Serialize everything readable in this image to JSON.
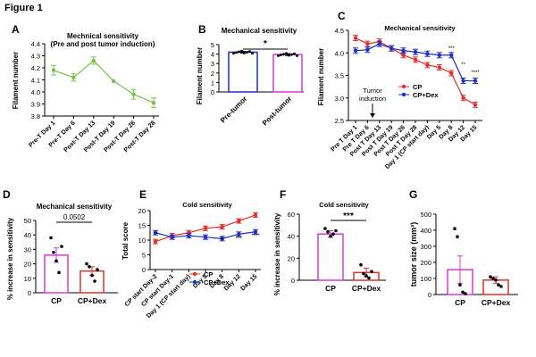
{
  "figure_title": "Figure 1",
  "colors": {
    "green": "#7ac143",
    "blue": "#1f2fc4",
    "magenta": "#d63ad6",
    "red": "#e0302a",
    "axis": "#000000"
  },
  "chart_data": [
    {
      "panel": "A",
      "type": "line",
      "title": "Mechnical sensitivity",
      "subtitle": "(Pre and post tumor induction)",
      "ylabel": "Filament number",
      "xlabel": "",
      "ylim": [
        3.8,
        4.4
      ],
      "yticks": [
        "3.8",
        "3.9",
        "4.0",
        "4.1",
        "4.2",
        "4.3",
        "4.4"
      ],
      "categories": [
        "Pre-T Day 1",
        "Pre-T Day 6",
        "Post-T Day 13",
        "Post-T Day 19",
        "Post-T Day 26",
        "Post-T Day 28"
      ],
      "series": [
        {
          "name": "",
          "values": [
            4.18,
            4.12,
            4.26,
            4.09,
            3.98,
            3.91
          ],
          "errors": [
            0.04,
            0.03,
            0.03,
            0.0,
            0.04,
            0.04
          ]
        }
      ]
    },
    {
      "panel": "B",
      "type": "bar",
      "title": "Mechanical sensitivity",
      "ylabel": "Filament number",
      "ylim": [
        0,
        5
      ],
      "yticks": [
        "0",
        "1",
        "2",
        "3",
        "4",
        "5"
      ],
      "categories": [
        "Pre-tumor",
        "Post-tumor"
      ],
      "values": [
        4.2,
        3.95
      ],
      "errors": [
        0.1,
        0.1
      ],
      "significance": "*"
    },
    {
      "panel": "C",
      "type": "line",
      "title": "Mechanical sensitivity",
      "ylabel": "Filament number",
      "ylim": [
        2.5,
        4.5
      ],
      "yticks": [
        "2.5",
        "3.0",
        "3.5",
        "4.0",
        "4.5"
      ],
      "categories": [
        "Pre T Day 1",
        "Pre T Day 6",
        "Post T Day 13",
        "Post T Day 19",
        "Post T Day 26",
        "Post T Day 28",
        "Day 1 (CP start day)",
        "Day 5",
        "Day 8",
        "Day 12",
        "Day 15"
      ],
      "series": [
        {
          "name": "CP",
          "values": [
            4.33,
            4.2,
            4.25,
            4.1,
            3.95,
            3.85,
            3.73,
            3.68,
            3.55,
            3.0,
            2.85
          ]
        },
        {
          "name": "CP+Dex",
          "values": [
            4.05,
            4.07,
            4.2,
            4.1,
            4.05,
            4.02,
            3.98,
            3.95,
            3.95,
            3.38,
            3.38
          ]
        }
      ],
      "significance": [
        {
          "category": "Day 8",
          "label": "***"
        },
        {
          "category": "Day 12",
          "label": "**"
        },
        {
          "category": "Day 15",
          "label": "****"
        }
      ],
      "annotation": "Tumor induction",
      "legend": [
        "CP",
        "CP+Dex"
      ]
    },
    {
      "panel": "D",
      "type": "bar",
      "title": "Mechanical sensitivity",
      "ylabel": "% increase in sensitivity",
      "ylim": [
        0,
        50
      ],
      "yticks": [
        "0",
        "10",
        "20",
        "30",
        "40",
        "50"
      ],
      "categories": [
        "CP",
        "CP+Dex"
      ],
      "values": [
        26,
        15
      ],
      "errors": [
        5,
        3
      ],
      "significance": "0.0502"
    },
    {
      "panel": "E",
      "type": "line",
      "title": "Cold sensitivity",
      "ylabel": "Total score",
      "ylim": [
        0,
        20
      ],
      "yticks": [
        "0",
        "5",
        "10",
        "15",
        "20"
      ],
      "categories": [
        "CP start Day-2",
        "CP start Day-1",
        "Day 1 (CP start day)",
        "Day 5",
        "Day 8",
        "Day 12",
        "Day 15"
      ],
      "series": [
        {
          "name": "CP",
          "values": [
            9.5,
            11.5,
            12.5,
            14.0,
            14.5,
            16.5,
            18.5
          ]
        },
        {
          "name": "CP+Dex",
          "values": [
            12.5,
            11.0,
            11.5,
            11.0,
            10.5,
            12.0,
            12.8
          ]
        }
      ],
      "significance": [
        {
          "category": "CP start Day-2",
          "label": "**"
        },
        {
          "category": "Day 8",
          "label": "**"
        },
        {
          "category": "Day 12",
          "label": "***"
        },
        {
          "category": "Day 15",
          "label": "****"
        }
      ],
      "legend": [
        "CP",
        "CP+Dex"
      ]
    },
    {
      "panel": "F",
      "type": "bar",
      "title": "Cold sensitivity",
      "ylabel": "% increase in sensitivity",
      "ylim": [
        0,
        60
      ],
      "yticks": [
        "0",
        "20",
        "40",
        "60"
      ],
      "categories": [
        "CP",
        "CP+Dex"
      ],
      "values": [
        42,
        7
      ],
      "errors": [
        3,
        4
      ],
      "significance": "***"
    },
    {
      "panel": "G",
      "type": "bar",
      "title": "",
      "ylabel": "tumor size (mm³)",
      "ylim": [
        0,
        500
      ],
      "yticks": [
        "0",
        "100",
        "200",
        "300",
        "400",
        "500"
      ],
      "categories": [
        "CP",
        "CP+Dex"
      ],
      "values": [
        155,
        90
      ],
      "errors": [
        85,
        20
      ]
    }
  ]
}
